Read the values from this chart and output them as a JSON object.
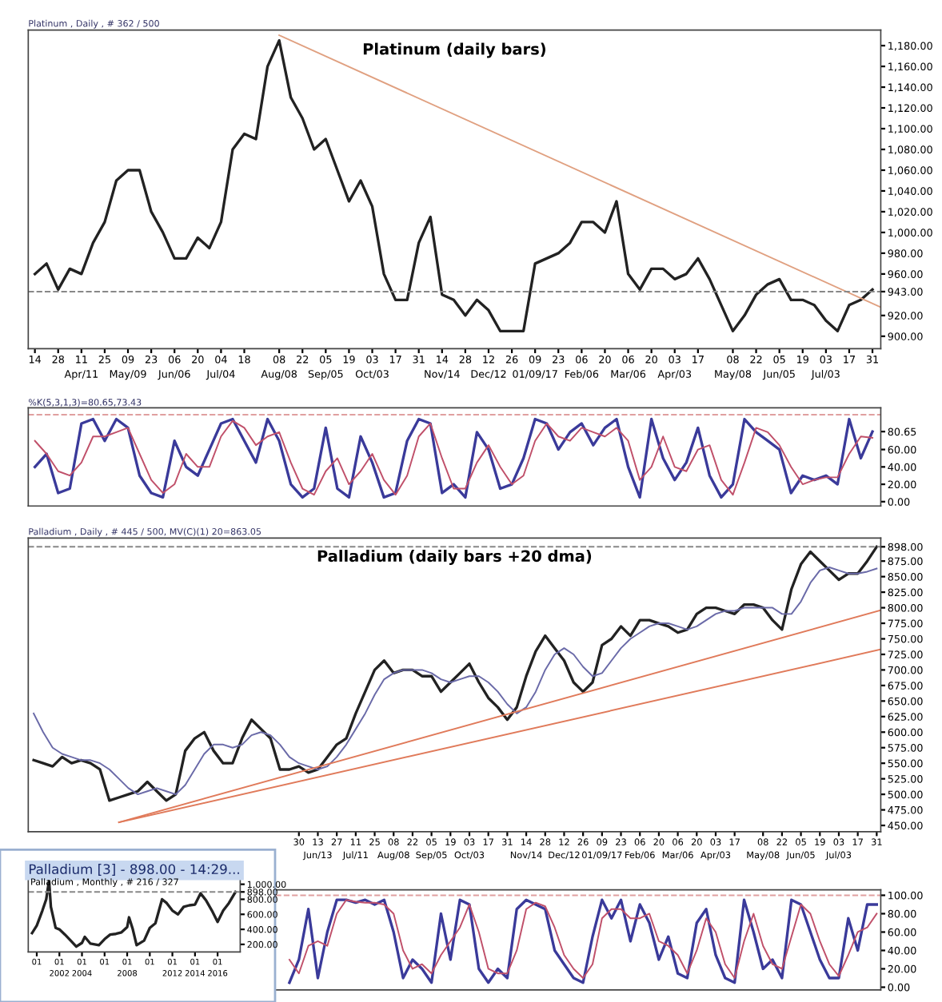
{
  "chart_data": [
    {
      "type": "line",
      "title": "Platinum (daily bars)",
      "subtitle": "Platinum , Daily , # 362 / 500",
      "x": [
        "2016-03-14",
        "2016-03-21",
        "2016-03-28",
        "2016-04-04",
        "2016-04-11",
        "2016-04-18",
        "2016-04-25",
        "2016-05-02",
        "2016-05-09",
        "2016-05-16",
        "2016-05-23",
        "2016-05-30",
        "2016-06-06",
        "2016-06-13",
        "2016-06-20",
        "2016-06-27",
        "2016-07-04",
        "2016-07-11",
        "2016-07-18",
        "2016-07-25",
        "2016-08-01",
        "2016-08-08",
        "2016-08-15",
        "2016-08-22",
        "2016-08-29",
        "2016-09-05",
        "2016-09-12",
        "2016-09-19",
        "2016-09-26",
        "2016-10-03",
        "2016-10-10",
        "2016-10-17",
        "2016-10-24",
        "2016-10-31",
        "2016-11-07",
        "2016-11-14",
        "2016-11-21",
        "2016-11-28",
        "2016-12-05",
        "2016-12-12",
        "2016-12-19",
        "2016-12-26",
        "2017-01-02",
        "2017-01-09",
        "2017-01-16",
        "2017-01-23",
        "2017-01-30",
        "2017-02-06",
        "2017-02-13",
        "2017-02-20",
        "2017-02-27",
        "2017-03-06",
        "2017-03-13",
        "2017-03-20",
        "2017-03-27",
        "2017-04-03",
        "2017-04-10",
        "2017-04-17",
        "2017-04-24",
        "2017-05-01",
        "2017-05-08",
        "2017-05-15",
        "2017-05-22",
        "2017-05-29",
        "2017-06-05",
        "2017-06-12",
        "2017-06-19",
        "2017-06-26",
        "2017-07-03",
        "2017-07-10",
        "2017-07-17",
        "2017-07-24",
        "2017-07-31"
      ],
      "series": [
        {
          "color": "#222222",
          "values": [
            960,
            970,
            945,
            965,
            960,
            990,
            1010,
            1050,
            1060,
            1060,
            1020,
            1000,
            975,
            975,
            995,
            985,
            1010,
            1080,
            1095,
            1090,
            1160,
            1185,
            1130,
            1110,
            1080,
            1090,
            1060,
            1030,
            1050,
            1025,
            960,
            935,
            935,
            990,
            1015,
            940,
            935,
            920,
            935,
            925,
            905,
            905,
            905,
            970,
            975,
            980,
            990,
            1010,
            1010,
            1000,
            1030,
            960,
            945,
            965,
            965,
            955,
            960,
            975,
            955,
            930,
            905,
            920,
            940,
            950,
            955,
            935,
            935,
            930,
            915,
            905,
            930,
            935,
            945
          ]
        },
        {
          "type": "line",
          "color": "#e0a080",
          "x": [
            "2016-08-08",
            "2017-08-05"
          ],
          "values": [
            1190,
            928
          ]
        }
      ],
      "ref_lines": [
        {
          "axis": "y",
          "value": 943,
          "color": "#888888",
          "line_style": "dashed"
        }
      ],
      "xlim": [
        "2016-03-10",
        "2017-08-05"
      ],
      "xticks": [
        {
          "value": "2016-03-14",
          "label": "14"
        },
        {
          "value": "2016-03-28",
          "label": "28"
        },
        {
          "value": "2016-04-11",
          "label": "11\nApr/11"
        },
        {
          "value": "2016-04-25",
          "label": "25"
        },
        {
          "value": "2016-05-09",
          "label": "09\nMay/09"
        },
        {
          "value": "2016-05-23",
          "label": "23"
        },
        {
          "value": "2016-06-06",
          "label": "06\nJun/06"
        },
        {
          "value": "2016-06-20",
          "label": "20"
        },
        {
          "value": "2016-07-04",
          "label": "04\nJul/04"
        },
        {
          "value": "2016-07-18",
          "label": "18"
        },
        {
          "value": "2016-08-08",
          "label": "08\nAug/08"
        },
        {
          "value": "2016-08-22",
          "label": "22"
        },
        {
          "value": "2016-09-05",
          "label": "05\nSep/05"
        },
        {
          "value": "2016-09-19",
          "label": "19"
        },
        {
          "value": "2016-10-03",
          "label": "03\nOct/03"
        },
        {
          "value": "2016-10-17",
          "label": "17"
        },
        {
          "value": "2016-10-31",
          "label": "31"
        },
        {
          "value": "2016-11-14",
          "label": "14\nNov/14"
        },
        {
          "value": "2016-11-28",
          "label": "28"
        },
        {
          "value": "2016-12-12",
          "label": "12\nDec/12"
        },
        {
          "value": "2016-12-26",
          "label": "26"
        },
        {
          "value": "2017-01-09",
          "label": "09\n01/09/17"
        },
        {
          "value": "2017-01-23",
          "label": "23"
        },
        {
          "value": "2017-02-06",
          "label": "06\nFeb/06"
        },
        {
          "value": "2017-02-20",
          "label": "20"
        },
        {
          "value": "2017-03-06",
          "label": "06\nMar/06"
        },
        {
          "value": "2017-03-20",
          "label": "20"
        },
        {
          "value": "2017-04-03",
          "label": "03\nApr/03"
        },
        {
          "value": "2017-04-17",
          "label": "17"
        },
        {
          "value": "2017-05-08",
          "label": "08\nMay/08"
        },
        {
          "value": "2017-05-22",
          "label": "22"
        },
        {
          "value": "2017-06-05",
          "label": "05\nJun/05"
        },
        {
          "value": "2017-06-19",
          "label": "19"
        },
        {
          "value": "2017-07-03",
          "label": "03\nJul/03"
        },
        {
          "value": "2017-07-17",
          "label": "17"
        },
        {
          "value": "2017-07-31",
          "label": "31"
        }
      ],
      "ylim": [
        888,
        1195
      ],
      "yticks": [
        {
          "value": 900,
          "label": "900.00"
        },
        {
          "value": 920,
          "label": "920.00"
        },
        {
          "value": 943,
          "label": "943.00"
        },
        {
          "value": 960,
          "label": "960.00"
        },
        {
          "value": 980,
          "label": "980.00"
        },
        {
          "value": 1000,
          "label": "1,000.00"
        },
        {
          "value": 1020,
          "label": "1,020.00"
        },
        {
          "value": 1040,
          "label": "1,040.00"
        },
        {
          "value": 1060,
          "label": "1,060.00"
        },
        {
          "value": 1080,
          "label": "1,080.00"
        },
        {
          "value": 1100,
          "label": "1,100.00"
        },
        {
          "value": 1120,
          "label": "1,120.00"
        },
        {
          "value": 1140,
          "label": "1,140.00"
        },
        {
          "value": 1160,
          "label": "1,160.00"
        },
        {
          "value": 1180,
          "label": "1,180.00"
        }
      ]
    },
    {
      "type": "line",
      "subtitle": "%K(5,3,1,3)=80.65,73.43",
      "tick_labels": "y",
      "x": [
        "2016-03-14",
        "2016-03-21",
        "2016-03-28",
        "2016-04-04",
        "2016-04-11",
        "2016-04-18",
        "2016-04-25",
        "2016-05-02",
        "2016-05-09",
        "2016-05-16",
        "2016-05-23",
        "2016-05-30",
        "2016-06-06",
        "2016-06-13",
        "2016-06-20",
        "2016-06-27",
        "2016-07-04",
        "2016-07-11",
        "2016-07-18",
        "2016-07-25",
        "2016-08-01",
        "2016-08-08",
        "2016-08-15",
        "2016-08-22",
        "2016-08-29",
        "2016-09-05",
        "2016-09-12",
        "2016-09-19",
        "2016-09-26",
        "2016-10-03",
        "2016-10-10",
        "2016-10-17",
        "2016-10-24",
        "2016-10-31",
        "2016-11-07",
        "2016-11-14",
        "2016-11-21",
        "2016-11-28",
        "2016-12-05",
        "2016-12-12",
        "2016-12-19",
        "2016-12-26",
        "2017-01-02",
        "2017-01-09",
        "2017-01-16",
        "2017-01-23",
        "2017-01-30",
        "2017-02-06",
        "2017-02-13",
        "2017-02-20",
        "2017-02-27",
        "2017-03-06",
        "2017-03-13",
        "2017-03-20",
        "2017-03-27",
        "2017-04-03",
        "2017-04-10",
        "2017-04-17",
        "2017-04-24",
        "2017-05-01",
        "2017-05-08",
        "2017-05-15",
        "2017-05-22",
        "2017-05-29",
        "2017-06-05",
        "2017-06-12",
        "2017-06-19",
        "2017-06-26",
        "2017-07-03",
        "2017-07-10",
        "2017-07-17",
        "2017-07-24",
        "2017-07-31"
      ],
      "series": [
        {
          "color": "#3a3a9a",
          "values": [
            40,
            55,
            10,
            15,
            90,
            95,
            70,
            95,
            85,
            30,
            10,
            5,
            70,
            40,
            30,
            60,
            90,
            95,
            70,
            45,
            95,
            70,
            20,
            5,
            15,
            85,
            15,
            5,
            75,
            45,
            5,
            10,
            70,
            95,
            90,
            10,
            20,
            5,
            80,
            60,
            15,
            20,
            50,
            95,
            90,
            60,
            80,
            90,
            65,
            85,
            95,
            40,
            5,
            95,
            50,
            25,
            45,
            85,
            30,
            5,
            20,
            95,
            80,
            70,
            60,
            10,
            30,
            25,
            30,
            20,
            95,
            50,
            80.65
          ]
        },
        {
          "color": "#c0506a",
          "values": [
            70,
            55,
            35,
            30,
            45,
            75,
            75,
            80,
            85,
            55,
            25,
            10,
            20,
            55,
            40,
            40,
            75,
            93,
            85,
            65,
            75,
            80,
            45,
            15,
            8,
            35,
            50,
            20,
            35,
            55,
            25,
            8,
            30,
            75,
            90,
            50,
            15,
            15,
            45,
            65,
            40,
            20,
            30,
            70,
            90,
            75,
            70,
            85,
            80,
            75,
            85,
            70,
            25,
            40,
            75,
            40,
            35,
            60,
            65,
            25,
            8,
            45,
            85,
            80,
            65,
            40,
            20,
            25,
            28,
            28,
            55,
            75,
            73.43
          ]
        }
      ],
      "ref_lines": [
        {
          "axis": "y",
          "value": 100,
          "color": "#e0a0a0",
          "line_style": "dashed"
        }
      ],
      "xlim": [
        "2016-03-10",
        "2017-08-05"
      ],
      "ylim": [
        -5,
        108
      ],
      "yticks": [
        {
          "value": 0,
          "label": "0.00"
        },
        {
          "value": 20,
          "label": "20.00"
        },
        {
          "value": 40,
          "label": "40.00"
        },
        {
          "value": 60,
          "label": "60.00"
        },
        {
          "value": 80.65,
          "label": "80.65"
        }
      ]
    },
    {
      "type": "line",
      "title": "Palladium (daily bars +20 dma)",
      "subtitle": "Palladium , Daily , # 445 / 500, MV(C)(1) 20=863.05",
      "x": [
        "2015-11-16",
        "2015-11-23",
        "2015-11-30",
        "2015-12-07",
        "2015-12-14",
        "2015-12-21",
        "2015-12-28",
        "2016-01-04",
        "2016-01-11",
        "2016-01-18",
        "2016-01-25",
        "2016-02-01",
        "2016-02-08",
        "2016-02-15",
        "2016-02-22",
        "2016-02-29",
        "2016-03-07",
        "2016-03-14",
        "2016-03-21",
        "2016-03-28",
        "2016-04-04",
        "2016-04-11",
        "2016-04-18",
        "2016-04-25",
        "2016-05-02",
        "2016-05-09",
        "2016-05-16",
        "2016-05-23",
        "2016-05-30",
        "2016-06-06",
        "2016-06-13",
        "2016-06-20",
        "2016-06-27",
        "2016-07-04",
        "2016-07-11",
        "2016-07-18",
        "2016-07-25",
        "2016-08-01",
        "2016-08-08",
        "2016-08-15",
        "2016-08-22",
        "2016-08-29",
        "2016-09-05",
        "2016-09-12",
        "2016-09-19",
        "2016-09-26",
        "2016-10-03",
        "2016-10-10",
        "2016-10-17",
        "2016-10-24",
        "2016-10-31",
        "2016-11-07",
        "2016-11-14",
        "2016-11-21",
        "2016-11-28",
        "2016-12-05",
        "2016-12-12",
        "2016-12-19",
        "2016-12-26",
        "2017-01-02",
        "2017-01-09",
        "2017-01-16",
        "2017-01-23",
        "2017-01-30",
        "2017-02-06",
        "2017-02-13",
        "2017-02-20",
        "2017-02-27",
        "2017-03-06",
        "2017-03-13",
        "2017-03-20",
        "2017-03-27",
        "2017-04-03",
        "2017-04-10",
        "2017-04-17",
        "2017-04-24",
        "2017-05-01",
        "2017-05-08",
        "2017-05-15",
        "2017-05-22",
        "2017-05-29",
        "2017-06-05",
        "2017-06-12",
        "2017-06-19",
        "2017-06-26",
        "2017-07-03",
        "2017-07-10",
        "2017-07-17",
        "2017-07-24",
        "2017-07-31"
      ],
      "series": [
        {
          "color": "#222222",
          "values": [
            555,
            550,
            545,
            560,
            550,
            555,
            550,
            540,
            490,
            495,
            500,
            505,
            520,
            505,
            490,
            500,
            570,
            590,
            600,
            570,
            550,
            550,
            590,
            620,
            605,
            590,
            540,
            540,
            545,
            535,
            540,
            560,
            580,
            590,
            630,
            665,
            700,
            715,
            695,
            700,
            700,
            690,
            690,
            665,
            680,
            695,
            710,
            680,
            655,
            640,
            620,
            640,
            690,
            730,
            755,
            735,
            715,
            680,
            665,
            680,
            740,
            750,
            770,
            755,
            780,
            780,
            775,
            770,
            760,
            765,
            790,
            800,
            800,
            795,
            790,
            805,
            805,
            800,
            780,
            765,
            830,
            870,
            890,
            875,
            860,
            845,
            855,
            855,
            875,
            898
          ]
        },
        {
          "color": "#6a6aa8",
          "values": [
            630,
            600,
            575,
            565,
            560,
            555,
            555,
            550,
            540,
            525,
            510,
            500,
            505,
            510,
            505,
            500,
            515,
            540,
            565,
            580,
            580,
            575,
            580,
            595,
            600,
            595,
            580,
            560,
            550,
            545,
            540,
            545,
            560,
            580,
            605,
            630,
            660,
            685,
            695,
            700,
            700,
            700,
            695,
            685,
            680,
            685,
            690,
            690,
            680,
            665,
            645,
            630,
            640,
            665,
            700,
            725,
            735,
            725,
            705,
            690,
            695,
            715,
            735,
            750,
            760,
            770,
            775,
            775,
            770,
            765,
            770,
            780,
            790,
            795,
            795,
            800,
            800,
            800,
            800,
            790,
            790,
            810,
            840,
            860,
            865,
            860,
            855,
            855,
            858,
            863
          ]
        },
        {
          "type": "line",
          "color": "#e07a5a",
          "x": [
            "2016-01-18",
            "2017-08-03"
          ],
          "values": [
            455,
            796
          ]
        },
        {
          "type": "line",
          "color": "#e07a5a",
          "x": [
            "2016-01-18",
            "2017-08-03"
          ],
          "values": [
            455,
            733
          ]
        }
      ],
      "ref_lines": [
        {
          "axis": "y",
          "value": 898,
          "color": "#888888",
          "line_style": "dashed"
        }
      ],
      "xlim": [
        "2015-11-12",
        "2017-08-03"
      ],
      "xticks": [
        {
          "value": "2016-05-30",
          "label": "30"
        },
        {
          "value": "2016-06-13",
          "label": "13\nJun/13"
        },
        {
          "value": "2016-06-27",
          "label": "27"
        },
        {
          "value": "2016-07-11",
          "label": "11\nJul/11"
        },
        {
          "value": "2016-07-25",
          "label": "25"
        },
        {
          "value": "2016-08-08",
          "label": "08\nAug/08"
        },
        {
          "value": "2016-08-22",
          "label": "22"
        },
        {
          "value": "2016-09-05",
          "label": "05\nSep/05"
        },
        {
          "value": "2016-09-19",
          "label": "19"
        },
        {
          "value": "2016-10-03",
          "label": "03\nOct/03"
        },
        {
          "value": "2016-10-17",
          "label": "17"
        },
        {
          "value": "2016-10-31",
          "label": "31"
        },
        {
          "value": "2016-11-14",
          "label": "14\nNov/14"
        },
        {
          "value": "2016-11-28",
          "label": "28"
        },
        {
          "value": "2016-12-12",
          "label": "12\nDec/12"
        },
        {
          "value": "2016-12-26",
          "label": "26"
        },
        {
          "value": "2017-01-09",
          "label": "09\n01/09/17"
        },
        {
          "value": "2017-01-23",
          "label": "23"
        },
        {
          "value": "2017-02-06",
          "label": "06\nFeb/06"
        },
        {
          "value": "2017-02-20",
          "label": "20"
        },
        {
          "value": "2017-03-06",
          "label": "06\nMar/06"
        },
        {
          "value": "2017-03-20",
          "label": "20"
        },
        {
          "value": "2017-04-03",
          "label": "03\nApr/03"
        },
        {
          "value": "2017-04-17",
          "label": "17"
        },
        {
          "value": "2017-05-08",
          "label": "08\nMay/08"
        },
        {
          "value": "2017-05-22",
          "label": "22"
        },
        {
          "value": "2017-06-05",
          "label": "05\nJun/05"
        },
        {
          "value": "2017-06-19",
          "label": "19"
        },
        {
          "value": "2017-07-03",
          "label": "03\nJul/03"
        },
        {
          "value": "2017-07-17",
          "label": "17"
        },
        {
          "value": "2017-07-31",
          "label": "31"
        }
      ],
      "ylim": [
        440,
        912
      ],
      "yticks": [
        {
          "value": 450,
          "label": "450.00"
        },
        {
          "value": 475,
          "label": "475.00"
        },
        {
          "value": 500,
          "label": "500.00"
        },
        {
          "value": 525,
          "label": "525.00"
        },
        {
          "value": 550,
          "label": "550.00"
        },
        {
          "value": 575,
          "label": "575.00"
        },
        {
          "value": 600,
          "label": "600.00"
        },
        {
          "value": 625,
          "label": "625.00"
        },
        {
          "value": 650,
          "label": "650.00"
        },
        {
          "value": 675,
          "label": "675.00"
        },
        {
          "value": 700,
          "label": "700.00"
        },
        {
          "value": 725,
          "label": "725.00"
        },
        {
          "value": 750,
          "label": "750.00"
        },
        {
          "value": 775,
          "label": "775.00"
        },
        {
          "value": 800,
          "label": "800.00"
        },
        {
          "value": 825,
          "label": "825.00"
        },
        {
          "value": 850,
          "label": "850.00"
        },
        {
          "value": 875,
          "label": "875.00"
        },
        {
          "value": 898,
          "label": "898.00"
        }
      ]
    },
    {
      "type": "line",
      "title": "Palladium [3] - 898.00 - 14:29...",
      "subtitle": "Palladium , Monthly , # 216 / 327",
      "x": [
        "1999-08",
        "2000-01",
        "2000-07",
        "2000-11",
        "2001-02",
        "2001-04",
        "2001-09",
        "2002-01",
        "2002-07",
        "2003-01",
        "2003-07",
        "2004-01",
        "2004-04",
        "2004-10",
        "2005-07",
        "2006-01",
        "2006-07",
        "2007-01",
        "2007-07",
        "2008-01",
        "2008-03",
        "2008-07",
        "2008-11",
        "2009-07",
        "2010-01",
        "2010-07",
        "2011-02",
        "2011-07",
        "2012-01",
        "2012-07",
        "2013-01",
        "2013-07",
        "2014-01",
        "2014-07",
        "2015-01",
        "2015-07",
        "2016-01",
        "2016-07",
        "2017-01",
        "2017-08"
      ],
      "series": [
        {
          "color": "#222222",
          "values": [
            350,
            450,
            650,
            800,
            1050,
            700,
            420,
            400,
            330,
            250,
            170,
            220,
            300,
            210,
            190,
            270,
            330,
            340,
            360,
            430,
            560,
            400,
            190,
            250,
            420,
            480,
            800,
            750,
            650,
            600,
            700,
            720,
            730,
            880,
            780,
            650,
            500,
            650,
            750,
            898
          ]
        }
      ],
      "ref_lines": [
        {
          "axis": "y",
          "value": 898,
          "color": "#888888",
          "line_style": "dashed"
        }
      ],
      "xlim": [
        "1999-04",
        "2018-01"
      ],
      "xticks": [
        {
          "value": "2000-01",
          "label": "01"
        },
        {
          "value": "2002-01",
          "label": "01\n2002"
        },
        {
          "value": "2004-01",
          "label": "01\n2004"
        },
        {
          "value": "2006-01",
          "label": "01"
        },
        {
          "value": "2008-01",
          "label": "01\n2008"
        },
        {
          "value": "2010-01",
          "label": "01"
        },
        {
          "value": "2012-01",
          "label": "01\n2012"
        },
        {
          "value": "2014-01",
          "label": "01\n2014"
        },
        {
          "value": "2016-01",
          "label": "01\n2016"
        }
      ],
      "ylim": [
        100,
        1100
      ],
      "yticks": [
        {
          "value": 200,
          "label": "200.00"
        },
        {
          "value": 400,
          "label": "400.00"
        },
        {
          "value": 600,
          "label": "600.00"
        },
        {
          "value": 800,
          "label": "800.00"
        },
        {
          "value": 898,
          "label": "898.00"
        },
        {
          "value": 1000,
          "label": "1,000.00"
        }
      ]
    },
    {
      "type": "line",
      "tick_labels": "y",
      "x": [
        "2016-05-23",
        "2016-05-30",
        "2016-06-06",
        "2016-06-13",
        "2016-06-20",
        "2016-06-27",
        "2016-07-04",
        "2016-07-11",
        "2016-07-18",
        "2016-07-25",
        "2016-08-01",
        "2016-08-08",
        "2016-08-15",
        "2016-08-22",
        "2016-08-29",
        "2016-09-05",
        "2016-09-12",
        "2016-09-19",
        "2016-09-26",
        "2016-10-03",
        "2016-10-10",
        "2016-10-17",
        "2016-10-24",
        "2016-10-31",
        "2016-11-07",
        "2016-11-14",
        "2016-11-21",
        "2016-11-28",
        "2016-12-05",
        "2016-12-12",
        "2016-12-19",
        "2016-12-26",
        "2017-01-02",
        "2017-01-09",
        "2017-01-16",
        "2017-01-23",
        "2017-01-30",
        "2017-02-06",
        "2017-02-13",
        "2017-02-20",
        "2017-02-27",
        "2017-03-06",
        "2017-03-13",
        "2017-03-20",
        "2017-03-27",
        "2017-04-03",
        "2017-04-10",
        "2017-04-17",
        "2017-04-24",
        "2017-05-01",
        "2017-05-08",
        "2017-05-15",
        "2017-05-22",
        "2017-05-29",
        "2017-06-05",
        "2017-06-12",
        "2017-06-19",
        "2017-06-26",
        "2017-07-03",
        "2017-07-10",
        "2017-07-17",
        "2017-07-24",
        "2017-07-31"
      ],
      "series": [
        {
          "color": "#3a3a9a",
          "values": [
            5,
            30,
            85,
            10,
            60,
            95,
            95,
            92,
            95,
            90,
            95,
            60,
            10,
            30,
            20,
            5,
            80,
            30,
            95,
            90,
            20,
            5,
            20,
            10,
            85,
            95,
            90,
            85,
            40,
            25,
            10,
            5,
            55,
            95,
            75,
            95,
            50,
            90,
            70,
            30,
            55,
            15,
            10,
            70,
            85,
            35,
            10,
            5,
            95,
            60,
            20,
            30,
            10,
            95,
            90,
            60,
            30,
            10,
            10,
            75,
            40,
            90,
            90
          ]
        },
        {
          "color": "#c0506a",
          "values": [
            30,
            15,
            45,
            50,
            45,
            80,
            95,
            93,
            92,
            92,
            90,
            80,
            40,
            20,
            25,
            15,
            35,
            50,
            65,
            90,
            60,
            20,
            15,
            15,
            40,
            85,
            92,
            88,
            65,
            35,
            20,
            10,
            25,
            75,
            85,
            85,
            75,
            75,
            80,
            50,
            45,
            35,
            15,
            40,
            75,
            60,
            25,
            10,
            50,
            80,
            45,
            25,
            20,
            55,
            90,
            80,
            50,
            25,
            12,
            35,
            60,
            65,
            80
          ]
        }
      ],
      "ref_lines": [
        {
          "axis": "y",
          "value": 100,
          "color": "#e0a0a0",
          "line_style": "dashed"
        }
      ],
      "xlim": [
        "2015-11-12",
        "2017-08-03"
      ],
      "ylim": [
        -3,
        106
      ],
      "yticks": [
        {
          "value": 0,
          "label": "0.00"
        },
        {
          "value": 20,
          "label": "20.00"
        },
        {
          "value": 40,
          "label": "40.00"
        },
        {
          "value": 60,
          "label": "60.00"
        },
        {
          "value": 80,
          "label": "80.00"
        },
        {
          "value": 100,
          "label": "100.00"
        }
      ]
    }
  ]
}
